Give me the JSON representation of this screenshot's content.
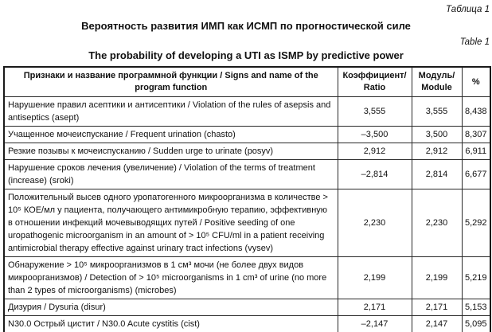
{
  "colors": {
    "background": "#ffffff",
    "text": "#111111",
    "border": "#2a2a2a"
  },
  "header": {
    "caption_ru": "Таблица 1",
    "caption_en": "Table 1",
    "title_ru": "Вероятность развития ИМП как ИСМП по прогностической силе",
    "title_en": "The probability of developing a UTI as ISMP by predictive power"
  },
  "table": {
    "columns": [
      "Признаки и название программной функции / Signs and name of the program function",
      "Коэффициент/ Ratio",
      "Модуль/ Module",
      "%"
    ],
    "rows": [
      {
        "sign": "Нарушение правил асептики и антисептики / Violation of the rules of asepsis and antiseptics (asept)",
        "ratio": "3,555",
        "module": "3,555",
        "percent": "8,438"
      },
      {
        "sign": "Учащенное мочеиспускание / Frequent urination (chasto)",
        "ratio": "–3,500",
        "module": "3,500",
        "percent": "8,307"
      },
      {
        "sign": "Резкие позывы к мочеиспусканию / Sudden urge to urinate (posyv)",
        "ratio": "2,912",
        "module": "2,912",
        "percent": "6,911"
      },
      {
        "sign": "Нарушение сроков лечения (увеличение) / Violation of the terms of treatment (increase) (sroki)",
        "ratio": "–2,814",
        "module": "2,814",
        "percent": "6,677"
      },
      {
        "sign": "Положительный высев одного уропатогенного микроорганизма в количестве > 10⁵ КОЕ/мл у пациента, получающего антимикробную терапию, эффективную в отношении инфекций мочевыводящих путей / Positive seeding of one uropathogenic microorganism in an amount of > 10⁵ CFU/ml in a patient receiving antimicrobial therapy effective against urinary tract infections (vysev)",
        "ratio": "2,230",
        "module": "2,230",
        "percent": "5,292"
      },
      {
        "sign": "Обнаружение > 10⁵ микроорганизмов в 1 см³ мочи (не более двух видов микроорганизмов) / Detection of > 10⁵ microorganisms in 1 cm³ of urine (no more than 2 types of microorganisms) (microbes)",
        "ratio": "2,199",
        "module": "2,199",
        "percent": "5,219"
      },
      {
        "sign": "Дизурия / Dysuria (disur)",
        "ratio": "2,171",
        "module": "2,171",
        "percent": "5,153"
      },
      {
        "sign": "N30.0 Острый цистит / N30.0 Acute cystitis (cist)",
        "ratio": "–2,147",
        "module": "2,147",
        "percent": "5,095"
      }
    ]
  }
}
